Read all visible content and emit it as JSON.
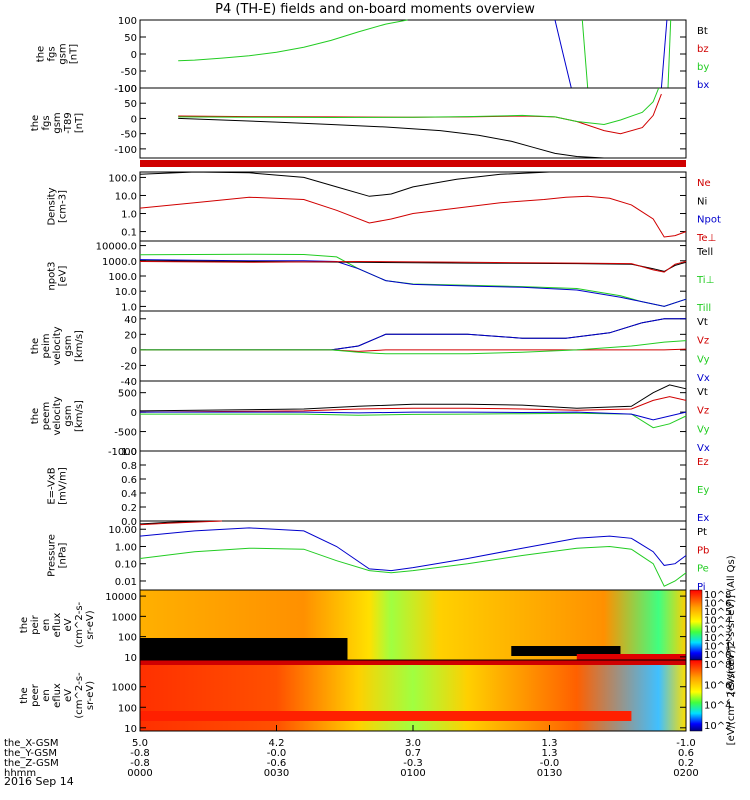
{
  "title": "P4 (TH-E) fields and on-board moments overview",
  "date_label": "2016 Sep 14",
  "colors": {
    "black": "#000000",
    "red": "#d00000",
    "green": "#22cc22",
    "blue": "#0000cc"
  },
  "chart_data": [
    {
      "type": "line",
      "ylabel": [
        "the",
        "fgs",
        "gsm",
        "[nT]"
      ],
      "ylim": [
        -100,
        100
      ],
      "yticks": [
        {
          "v": 100,
          "t": "100"
        },
        {
          "v": 50,
          "t": "50"
        },
        {
          "v": 0,
          "t": "0"
        },
        {
          "v": -50,
          "t": "-50"
        },
        {
          "v": -100,
          "t": "-100"
        }
      ],
      "legend": [
        {
          "t": "Bt",
          "c": "black"
        },
        {
          "t": "bz",
          "c": "red"
        },
        {
          "t": "by",
          "c": "green"
        },
        {
          "t": "bx",
          "c": "blue"
        }
      ],
      "series": [
        {
          "c": "green",
          "x": [
            7,
            10,
            15,
            20,
            25,
            30,
            35,
            40,
            45,
            49
          ],
          "y": [
            -20,
            -18,
            -12,
            -5,
            5,
            20,
            40,
            65,
            88,
            100
          ]
        },
        {
          "c": "blue",
          "x": [
            76,
            77.5,
            79
          ],
          "y": [
            100,
            0,
            -100
          ]
        },
        {
          "c": "blue",
          "x": [
            95.5,
            96.5
          ],
          "y": [
            -100,
            100
          ]
        },
        {
          "c": "green",
          "x": [
            81,
            82
          ],
          "y": [
            100,
            -100
          ]
        },
        {
          "c": "green",
          "x": [
            96.7,
            97.2
          ],
          "y": [
            -100,
            100
          ]
        }
      ]
    },
    {
      "type": "line",
      "ylabel": [
        "the",
        "fgs",
        "gsm",
        "-T89",
        "[nT]"
      ],
      "ylim": [
        -130,
        100
      ],
      "yticks": [
        {
          "v": 100,
          "t": "100"
        },
        {
          "v": 50,
          "t": "50"
        },
        {
          "v": 0,
          "t": "0"
        },
        {
          "v": -50,
          "t": "-50"
        },
        {
          "v": -100,
          "t": "-100"
        }
      ],
      "legend": [],
      "series": [
        {
          "c": "black",
          "x": [
            7,
            15,
            25,
            35,
            45,
            55,
            62,
            68,
            72,
            76,
            80,
            85,
            90
          ],
          "y": [
            0,
            -5,
            -12,
            -20,
            -28,
            -40,
            -55,
            -75,
            -95,
            -115,
            -125,
            -130,
            -130
          ]
        },
        {
          "c": "red",
          "x": [
            7,
            20,
            35,
            50,
            60,
            70,
            76,
            80,
            85,
            88,
            92,
            94,
            95.5
          ],
          "y": [
            8,
            6,
            5,
            4,
            5,
            8,
            5,
            -10,
            -40,
            -50,
            -30,
            10,
            80
          ]
        },
        {
          "c": "green",
          "x": [
            7,
            20,
            35,
            50,
            60,
            70,
            76,
            80,
            85,
            88,
            92,
            94,
            95
          ],
          "y": [
            5,
            4,
            3,
            4,
            6,
            10,
            5,
            -10,
            -20,
            -5,
            20,
            55,
            100
          ]
        }
      ]
    },
    {
      "type": "line",
      "ylabel": [
        "Density",
        "[cm-3]"
      ],
      "ylog": true,
      "ylim": [
        0.03,
        200
      ],
      "yticks": [
        {
          "v": 100,
          "t": "100.0"
        },
        {
          "v": 10,
          "t": "10.0"
        },
        {
          "v": 1,
          "t": "1.0"
        },
        {
          "v": 0.1,
          "t": "0.1"
        }
      ],
      "legend": [
        {
          "t": "Ne",
          "c": "red"
        },
        {
          "t": "Ni",
          "c": "black"
        },
        {
          "t": "Npot",
          "c": "blue"
        },
        {
          "t": "Te⊥",
          "c": "red"
        }
      ],
      "series": [
        {
          "c": "black",
          "x": [
            0,
            10,
            20,
            30,
            36,
            42,
            46,
            50,
            58,
            66,
            75
          ],
          "y": [
            150,
            200,
            180,
            100,
            30,
            9,
            12,
            30,
            80,
            150,
            200
          ]
        },
        {
          "c": "red",
          "x": [
            0,
            10,
            20,
            30,
            36,
            42,
            46,
            50,
            58,
            66,
            74,
            78,
            82,
            86,
            90,
            94,
            96,
            98,
            100
          ],
          "y": [
            2,
            4,
            8,
            6,
            1.5,
            0.3,
            0.5,
            1,
            2,
            4,
            6,
            8,
            9,
            7,
            3,
            0.5,
            0.05,
            0.06,
            0.1
          ]
        }
      ]
    },
    {
      "type": "line",
      "ylabel": [
        "npot3",
        "[eV]"
      ],
      "ylog": true,
      "ylim": [
        0.5,
        20000
      ],
      "yticks": [
        {
          "v": 10000,
          "t": "10000.0"
        },
        {
          "v": 1000,
          "t": "1000.0"
        },
        {
          "v": 100,
          "t": "100.0"
        },
        {
          "v": 10,
          "t": "10.0"
        },
        {
          "v": 1,
          "t": "1.0"
        }
      ],
      "legend": [
        {
          "t": "Tell",
          "c": "black"
        },
        {
          "t": "Ti⊥",
          "c": "green"
        },
        {
          "t": "Till",
          "c": "green"
        }
      ],
      "series": [
        {
          "c": "green",
          "x": [
            0,
            10,
            20,
            30,
            36,
            40,
            45,
            50,
            60,
            70,
            80,
            88,
            92,
            96,
            100
          ],
          "y": [
            2500,
            2600,
            2700,
            2600,
            1800,
            300,
            50,
            30,
            25,
            20,
            15,
            5,
            2,
            1,
            3
          ]
        },
        {
          "c": "blue",
          "x": [
            0,
            10,
            20,
            30,
            36,
            40,
            45,
            50,
            60,
            70,
            80,
            88,
            92,
            96,
            100
          ],
          "y": [
            1200,
            1100,
            1000,
            1000,
            900,
            300,
            50,
            28,
            22,
            18,
            12,
            4,
            2,
            1,
            3
          ]
        },
        {
          "c": "black",
          "x": [
            0,
            20,
            40,
            60,
            80,
            90,
            94,
            96,
            98,
            100
          ],
          "y": [
            1000,
            900,
            800,
            700,
            650,
            600,
            300,
            200,
            500,
            800
          ]
        },
        {
          "c": "red",
          "x": [
            0,
            20,
            40,
            60,
            80,
            90,
            94,
            96,
            98,
            100
          ],
          "y": [
            900,
            800,
            900,
            800,
            700,
            650,
            250,
            180,
            600,
            900
          ]
        }
      ]
    },
    {
      "type": "line",
      "ylabel": [
        "the",
        "peim",
        "velocity",
        "gsm",
        "[km/s]"
      ],
      "ylim": [
        -40,
        50
      ],
      "yticks": [
        {
          "v": 40,
          "t": "40"
        },
        {
          "v": 20,
          "t": "20"
        },
        {
          "v": 0,
          "t": "0"
        },
        {
          "v": -20,
          "t": "-20"
        },
        {
          "v": -40,
          "t": "-40"
        }
      ],
      "legend": [
        {
          "t": "Vt",
          "c": "black"
        },
        {
          "t": "Vz",
          "c": "red"
        },
        {
          "t": "Vy",
          "c": "green"
        },
        {
          "t": "Vx",
          "c": "blue"
        }
      ],
      "series": [
        {
          "c": "black",
          "x": [
            0,
            35,
            40,
            45,
            60,
            70,
            78,
            86,
            92,
            96,
            100
          ],
          "y": [
            0,
            0,
            5,
            20,
            20,
            15,
            15,
            22,
            35,
            40,
            40
          ]
        },
        {
          "c": "blue",
          "x": [
            0,
            35,
            40,
            45,
            60,
            70,
            78,
            86,
            92,
            96,
            100
          ],
          "y": [
            0,
            0,
            5,
            20,
            20,
            15,
            15,
            22,
            35,
            40,
            40
          ]
        },
        {
          "c": "red",
          "x": [
            0,
            35,
            40,
            45,
            60,
            70,
            80,
            90,
            96,
            100
          ],
          "y": [
            0,
            0,
            -2,
            0,
            0,
            0,
            0,
            0,
            0,
            1
          ]
        },
        {
          "c": "green",
          "x": [
            0,
            35,
            40,
            45,
            60,
            70,
            80,
            90,
            96,
            100
          ],
          "y": [
            0,
            0,
            -3,
            -5,
            -5,
            -3,
            0,
            5,
            10,
            12
          ]
        }
      ]
    },
    {
      "type": "line",
      "ylabel": [
        "the",
        "peem",
        "velocity",
        "gsm",
        "[km/s]"
      ],
      "ylim": [
        -1000,
        800
      ],
      "yticks": [
        {
          "v": 500,
          "t": "500"
        },
        {
          "v": 0,
          "t": "0"
        },
        {
          "v": -500,
          "t": "-500"
        },
        {
          "v": -1000,
          "t": "-1000"
        }
      ],
      "legend": [
        {
          "t": "Vt",
          "c": "black"
        },
        {
          "t": "Vz",
          "c": "red"
        },
        {
          "t": "Vy",
          "c": "green"
        },
        {
          "t": "Vx",
          "c": "blue"
        }
      ],
      "series": [
        {
          "c": "black",
          "x": [
            0,
            30,
            40,
            50,
            60,
            70,
            80,
            90,
            94,
            97,
            100
          ],
          "y": [
            30,
            80,
            150,
            200,
            200,
            180,
            100,
            150,
            500,
            700,
            600
          ]
        },
        {
          "c": "red",
          "x": [
            0,
            30,
            40,
            50,
            60,
            70,
            80,
            90,
            94,
            97,
            100
          ],
          "y": [
            0,
            30,
            80,
            100,
            100,
            80,
            50,
            80,
            300,
            400,
            300
          ]
        },
        {
          "c": "green",
          "x": [
            0,
            30,
            40,
            50,
            60,
            70,
            80,
            90,
            94,
            97,
            100
          ],
          "y": [
            -50,
            -50,
            -80,
            -60,
            -50,
            -40,
            -30,
            -50,
            -400,
            -300,
            -100
          ]
        },
        {
          "c": "blue",
          "x": [
            0,
            30,
            40,
            50,
            60,
            70,
            80,
            90,
            94,
            97,
            100
          ],
          "y": [
            0,
            0,
            -20,
            0,
            0,
            -10,
            0,
            -50,
            -200,
            -100,
            0
          ]
        }
      ]
    },
    {
      "type": "line",
      "ylabel": [
        "E=-VxB",
        "[mV/m]"
      ],
      "ylim": [
        0,
        1
      ],
      "yticks": [
        {
          "v": 1,
          "t": "1.0"
        },
        {
          "v": 0.8,
          "t": "0.8"
        },
        {
          "v": 0.6,
          "t": "0.6"
        },
        {
          "v": 0.4,
          "t": "0.4"
        },
        {
          "v": 0.2,
          "t": "0.2"
        },
        {
          "v": 0,
          "t": "0.0"
        }
      ],
      "legend": [
        {
          "t": "Ez",
          "c": "red"
        },
        {
          "t": "Ey",
          "c": "green"
        },
        {
          "t": "Ex",
          "c": "blue"
        }
      ],
      "series": []
    },
    {
      "type": "line",
      "ylabel": [
        "Pressure",
        "[nPa]"
      ],
      "ylog": true,
      "ylim": [
        0.003,
        30
      ],
      "yticks": [
        {
          "v": 10,
          "t": "10.00"
        },
        {
          "v": 1,
          "t": "1.00"
        },
        {
          "v": 0.1,
          "t": "0.10"
        },
        {
          "v": 0.01,
          "t": "0.01"
        }
      ],
      "legend": [
        {
          "t": "Pt",
          "c": "black"
        },
        {
          "t": "Pb",
          "c": "red"
        },
        {
          "t": "Pe",
          "c": "green"
        },
        {
          "t": "Pi",
          "c": "blue"
        }
      ],
      "series": [
        {
          "c": "blue",
          "x": [
            0,
            10,
            20,
            30,
            36,
            42,
            46,
            50,
            60,
            70,
            80,
            86,
            90,
            94,
            96,
            98,
            100
          ],
          "y": [
            4,
            8,
            12,
            8,
            1,
            0.05,
            0.04,
            0.06,
            0.2,
            0.8,
            3,
            4,
            3,
            0.5,
            0.08,
            0.1,
            0.3
          ]
        },
        {
          "c": "green",
          "x": [
            0,
            10,
            20,
            30,
            36,
            42,
            46,
            50,
            60,
            70,
            80,
            86,
            90,
            94,
            96,
            98,
            100
          ],
          "y": [
            0.2,
            0.5,
            0.8,
            0.7,
            0.15,
            0.04,
            0.03,
            0.04,
            0.1,
            0.3,
            0.8,
            1,
            0.7,
            0.1,
            0.005,
            0.01,
            0.03
          ]
        },
        {
          "c": "black",
          "x": [
            0,
            5,
            10,
            15
          ],
          "y": [
            20,
            25,
            28,
            30
          ]
        },
        {
          "c": "red",
          "x": [
            0,
            5,
            10,
            15
          ],
          "y": [
            18,
            22,
            26,
            30
          ]
        }
      ]
    },
    {
      "type": "heatmap",
      "ylabel": [
        "the",
        "peir",
        "en",
        "eflux",
        "eV",
        "(cm^2-s-",
        "sr-eV)"
      ],
      "ylog": true,
      "ylim": [
        7,
        20000
      ],
      "yticks": [
        {
          "v": 10000,
          "t": "10000"
        },
        {
          "v": 1000,
          "t": "1000"
        },
        {
          "v": 100,
          "t": "100"
        },
        {
          "v": 10,
          "t": "10"
        }
      ],
      "colorbar": {
        "label": "[eV/(cm^2-s-sr-eV)] (All Qs)",
        "ticks": [
          "10^8",
          "10^6",
          "10^5",
          "10^4",
          "10^3",
          "10^2",
          "10^1",
          "10^0"
        ]
      }
    },
    {
      "type": "heatmap",
      "ylabel": [
        "the",
        "peer",
        "en",
        "eflux",
        "eV",
        "(cm^2-s-",
        "sr-eV)"
      ],
      "ylog": true,
      "ylim": [
        7,
        20000
      ],
      "yticks": [
        {
          "v": 1000,
          "t": "1000"
        },
        {
          "v": 100,
          "t": "100"
        },
        {
          "v": 10,
          "t": "10"
        }
      ],
      "colorbar": {
        "label": "[eV/(cm^2-s-sr-eV)]",
        "ticks": [
          "10^8",
          "10^6",
          "10^4",
          "10^2"
        ]
      }
    }
  ],
  "xaxis_rows": [
    {
      "label": "the_X-GSM",
      "values": [
        "5.0",
        "4.2",
        "3.0",
        "1.3",
        "-1.0"
      ]
    },
    {
      "label": "the_Y-GSM",
      "values": [
        "-0.8",
        "-0.0",
        "0.7",
        "1.3",
        "0.6"
      ]
    },
    {
      "label": "the_Z-GSM",
      "values": [
        "-0.8",
        "-0.6",
        "-0.3",
        "-0.0",
        "0.2"
      ]
    },
    {
      "label": "hhmm",
      "values": [
        "0000",
        "0030",
        "0100",
        "0130",
        "0200"
      ]
    }
  ]
}
